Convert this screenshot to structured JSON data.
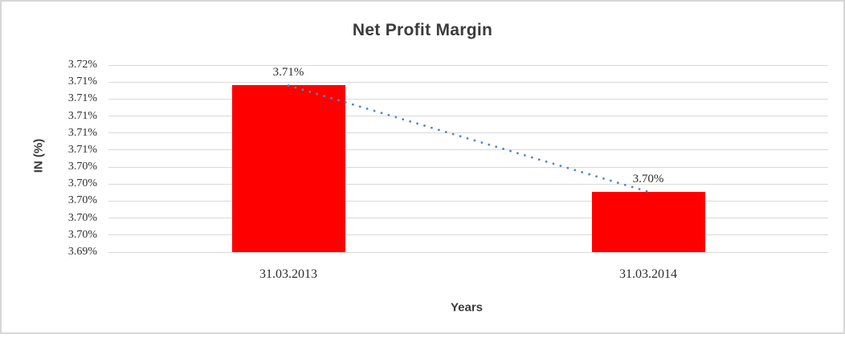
{
  "chart_data": {
    "type": "bar",
    "title": "Net Profit Margin",
    "xlabel": "Years",
    "ylabel": "IN (%)",
    "categories": [
      "31.03.2013",
      "31.03.2014"
    ],
    "values": [
      3.71,
      3.7
    ],
    "values_precise": [
      3.7136,
      3.7011
    ],
    "data_labels": [
      "3.71%",
      "3.70%"
    ],
    "series": [
      {
        "name": "Net Profit Margin",
        "values": [
          3.71,
          3.7
        ]
      }
    ],
    "y_tick_labels": [
      "3.72%",
      "3.71%",
      "3.71%",
      "3.71%",
      "3.71%",
      "3.71%",
      "3.70%",
      "3.70%",
      "3.70%",
      "3.70%",
      "3.70%",
      "3.69%"
    ],
    "axis": {
      "y_min": 3.694,
      "y_max": 3.716,
      "y_major_step": 0.002,
      "y_unit": "percent"
    },
    "grid": true,
    "legend": "none",
    "trendline": {
      "type": "linear",
      "style": "dotted",
      "color": "#4e8ac8"
    },
    "colors": {
      "bar": "#ff0000",
      "trend": "#4e8ac8",
      "grid": "#d9d9d9",
      "text": "#2e2e2e",
      "title_text": "#3b3b3b",
      "border": "#d6d6d6"
    }
  }
}
